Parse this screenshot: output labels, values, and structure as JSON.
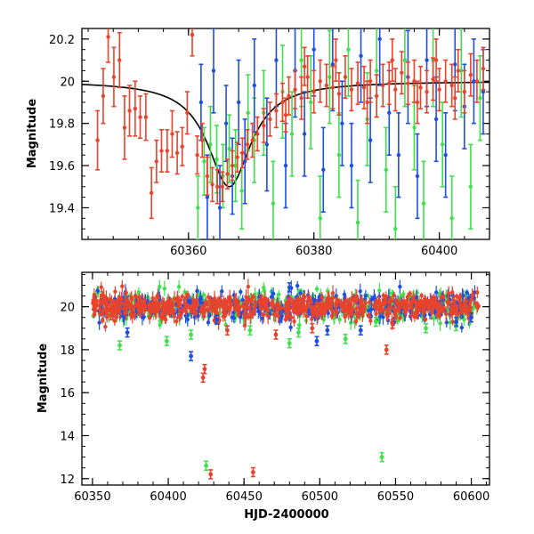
{
  "chart_data": [
    {
      "type": "scatter",
      "panel": "top",
      "ylabel": "Magnitude",
      "xlabel": "",
      "xlim": [
        60343,
        60408
      ],
      "ylim": [
        20.25,
        19.25
      ],
      "y_inverted": true,
      "xticks": [
        60360,
        60380,
        60400
      ],
      "xtick_labels": [
        "60360",
        "60380",
        "60400"
      ],
      "yticks": [
        19.4,
        19.6,
        19.8,
        20.0,
        20.2
      ],
      "ytick_labels": [
        "19.4",
        "19.6",
        "19.8",
        "20",
        "20.2"
      ],
      "model_curve": {
        "description": "peaked light-curve fit",
        "color": "#000000",
        "baseline_mag": 20.0,
        "peak_mag": 19.5,
        "peak_x": 60366.5,
        "width": 4.2
      },
      "series": [
        {
          "color": "#e8432c",
          "points": [
            [
              60345.5,
              19.72,
              0.14
            ],
            [
              60346.4,
              19.93,
              0.13
            ],
            [
              60347.2,
              20.21,
              0.12
            ],
            [
              60348.1,
              20.02,
              0.14
            ],
            [
              60349.0,
              20.1,
              0.13
            ],
            [
              60349.8,
              19.78,
              0.15
            ],
            [
              60350.6,
              19.86,
              0.12
            ],
            [
              60351.5,
              19.87,
              0.13
            ],
            [
              60352.3,
              19.83,
              0.1
            ],
            [
              60353.2,
              19.83,
              0.11
            ],
            [
              60354.1,
              19.47,
              0.12
            ],
            [
              60354.9,
              19.62,
              0.1
            ],
            [
              60355.7,
              19.67,
              0.1
            ],
            [
              60356.6,
              19.67,
              0.1
            ],
            [
              60357.4,
              19.75,
              0.11
            ],
            [
              60358.2,
              19.66,
              0.1
            ],
            [
              60359.0,
              19.69,
              0.09
            ],
            [
              60359.8,
              19.85,
              0.1
            ],
            [
              60360.6,
              20.22,
              0.1
            ],
            [
              60361.4,
              19.65,
              0.09
            ],
            [
              60362.2,
              19.72,
              0.08
            ],
            [
              60363.0,
              19.55,
              0.09
            ],
            [
              60363.8,
              19.51,
              0.08
            ],
            [
              60364.6,
              19.5,
              0.08
            ],
            [
              60365.4,
              19.5,
              0.07
            ],
            [
              60366.2,
              19.56,
              0.07
            ],
            [
              60367.0,
              19.6,
              0.07
            ],
            [
              60367.8,
              19.64,
              0.07
            ],
            [
              60368.6,
              19.66,
              0.07
            ],
            [
              60369.4,
              19.7,
              0.07
            ],
            [
              60370.2,
              19.72,
              0.08
            ],
            [
              60371.0,
              19.75,
              0.08
            ],
            [
              60372.0,
              19.79,
              0.08
            ],
            [
              60373.0,
              19.82,
              0.08
            ],
            [
              60374.0,
              19.86,
              0.08
            ],
            [
              60375.0,
              19.9,
              0.09
            ],
            [
              60376.0,
              19.93,
              0.09
            ],
            [
              60377.0,
              19.96,
              0.09
            ],
            [
              60378.0,
              19.92,
              0.1
            ],
            [
              60379.0,
              20.02,
              0.1
            ],
            [
              60380.0,
              19.95,
              0.1
            ],
            [
              60381.0,
              20.0,
              0.1
            ],
            [
              60382.0,
              19.98,
              0.1
            ],
            [
              60383.0,
              19.97,
              0.1
            ],
            [
              60384.0,
              19.94,
              0.1
            ],
            [
              60385.0,
              20.02,
              0.1
            ],
            [
              60386.0,
              19.96,
              0.1
            ],
            [
              60387.0,
              19.99,
              0.1
            ],
            [
              60388.0,
              19.97,
              0.1
            ],
            [
              60389.0,
              20.0,
              0.1
            ],
            [
              60390.0,
              19.93,
              0.1
            ],
            [
              60391.0,
              19.98,
              0.1
            ],
            [
              60392.0,
              19.99,
              0.1
            ],
            [
              60393.0,
              19.96,
              0.1
            ],
            [
              60394.0,
              20.04,
              0.1
            ],
            [
              60395.0,
              19.99,
              0.1
            ],
            [
              60396.0,
              20.0,
              0.1
            ],
            [
              60397.0,
              19.97,
              0.1
            ],
            [
              60398.0,
              19.95,
              0.1
            ],
            [
              60399.0,
              20.01,
              0.1
            ],
            [
              60400.0,
              19.96,
              0.1
            ],
            [
              60401.0,
              20.0,
              0.1
            ],
            [
              60402.0,
              19.98,
              0.1
            ],
            [
              60403.0,
              20.05,
              0.1
            ],
            [
              60404.0,
              19.95,
              0.1
            ],
            [
              60405.0,
              20.03,
              0.1
            ],
            [
              60406.0,
              20.0,
              0.1
            ],
            [
              60407.0,
              20.06,
              0.1
            ],
            [
              60375.5,
              19.84,
              0.08
            ],
            [
              60378.5,
              20.07,
              0.09
            ],
            [
              60383.5,
              20.1,
              0.1
            ],
            [
              60388.5,
              19.9,
              0.1
            ],
            [
              60392.5,
              20.1,
              0.1
            ],
            [
              60396.5,
              19.9,
              0.1
            ],
            [
              60399.5,
              20.1,
              0.1
            ],
            [
              60402.5,
              19.92,
              0.1
            ]
          ]
        },
        {
          "color": "#3fe04c",
          "points": [
            [
              60361.5,
              19.4,
              0.15
            ],
            [
              60362.5,
              19.62,
              0.16
            ],
            [
              60363.5,
              19.7,
              0.18
            ],
            [
              60364.5,
              19.63,
              0.16
            ],
            [
              60365.5,
              19.55,
              0.15
            ],
            [
              60366.5,
              19.68,
              0.16
            ],
            [
              60367.5,
              19.6,
              0.17
            ],
            [
              60368.5,
              19.48,
              0.18
            ],
            [
              60369.5,
              19.85,
              0.18
            ],
            [
              60370.5,
              19.72,
              0.2
            ],
            [
              60372.0,
              19.85,
              0.2
            ],
            [
              60373.5,
              19.42,
              0.2
            ],
            [
              60375.0,
              19.95,
              0.22
            ],
            [
              60376.5,
              19.75,
              0.2
            ],
            [
              60378.0,
              20.1,
              0.22
            ],
            [
              60379.5,
              19.9,
              0.22
            ],
            [
              60381.0,
              19.35,
              0.2
            ],
            [
              60382.5,
              20.02,
              0.22
            ],
            [
              60384.0,
              19.65,
              0.2
            ],
            [
              60385.5,
              20.15,
              0.22
            ],
            [
              60387.0,
              19.33,
              0.2
            ],
            [
              60388.5,
              19.82,
              0.22
            ],
            [
              60390.0,
              20.05,
              0.22
            ],
            [
              60391.5,
              19.58,
              0.2
            ],
            [
              60393.0,
              19.3,
              0.2
            ],
            [
              60394.5,
              20.1,
              0.22
            ],
            [
              60396.0,
              19.78,
              0.2
            ],
            [
              60397.5,
              19.42,
              0.2
            ],
            [
              60399.0,
              20.1,
              0.22
            ],
            [
              60400.5,
              19.7,
              0.2
            ],
            [
              60402.0,
              19.35,
              0.2
            ],
            [
              60403.5,
              20.05,
              0.22
            ],
            [
              60405.0,
              19.5,
              0.2
            ],
            [
              60406.5,
              19.92,
              0.2
            ]
          ]
        },
        {
          "color": "#1f4fe0",
          "points": [
            [
              60362.0,
              19.9,
              0.18
            ],
            [
              60363.0,
              19.45,
              0.2
            ],
            [
              60364.0,
              20.05,
              0.2
            ],
            [
              60365.0,
              19.4,
              0.2
            ],
            [
              60366.0,
              19.8,
              0.18
            ],
            [
              60367.0,
              19.55,
              0.18
            ],
            [
              60368.0,
              19.9,
              0.2
            ],
            [
              60369.0,
              19.62,
              0.2
            ],
            [
              60370.5,
              19.98,
              0.22
            ],
            [
              60372.5,
              19.7,
              0.22
            ],
            [
              60374.0,
              20.1,
              0.22
            ],
            [
              60375.5,
              19.6,
              0.2
            ],
            [
              60377.0,
              20.05,
              0.22
            ],
            [
              60378.5,
              19.75,
              0.2
            ],
            [
              60380.0,
              20.15,
              0.22
            ],
            [
              60381.5,
              19.58,
              0.2
            ],
            [
              60383.0,
              20.08,
              0.22
            ],
            [
              60384.5,
              19.8,
              0.2
            ],
            [
              60386.0,
              19.6,
              0.2
            ],
            [
              60387.5,
              20.12,
              0.22
            ],
            [
              60389.0,
              19.72,
              0.2
            ],
            [
              60390.5,
              20.2,
              0.22
            ],
            [
              60392.0,
              19.85,
              0.2
            ],
            [
              60393.5,
              19.65,
              0.2
            ],
            [
              60395.0,
              20.02,
              0.22
            ],
            [
              60396.5,
              19.55,
              0.2
            ],
            [
              60398.0,
              20.1,
              0.22
            ],
            [
              60399.5,
              19.82,
              0.2
            ],
            [
              60401.0,
              19.65,
              0.2
            ],
            [
              60402.5,
              20.08,
              0.22
            ],
            [
              60404.0,
              19.88,
              0.2
            ],
            [
              60405.5,
              20.0,
              0.2
            ],
            [
              60407.0,
              19.95,
              0.2
            ]
          ]
        }
      ]
    },
    {
      "type": "scatter",
      "panel": "bottom",
      "ylabel": "Magnitude",
      "xlabel": "HJD-2400000",
      "xlim": [
        60343,
        60612
      ],
      "ylim": [
        21.6,
        11.7
      ],
      "y_inverted": true,
      "xticks": [
        60350,
        60400,
        60450,
        60500,
        60550,
        60600
      ],
      "xtick_labels": [
        "60350",
        "60400",
        "60450",
        "60500",
        "60550",
        "60600"
      ],
      "yticks": [
        12,
        14,
        16,
        18,
        20
      ],
      "ytick_labels": [
        "12",
        "14",
        "16",
        "18",
        "20"
      ],
      "baseline_band": {
        "x_start": 60350,
        "x_end": 60605,
        "center_mag": 20.0,
        "scatter_mag": 0.35
      },
      "series": [
        {
          "color": "#e8432c",
          "outliers": [
            [
              60428,
              12.2
            ],
            [
              60456,
              12.3
            ],
            [
              60423,
              16.7
            ],
            [
              60424,
              17.1
            ],
            [
              60471,
              18.7
            ],
            [
              60544,
              18.0
            ],
            [
              60548,
              19.2
            ],
            [
              60439,
              18.9
            ],
            [
              60362,
              19.6
            ],
            [
              60495,
              19.0
            ]
          ]
        },
        {
          "color": "#3fe04c",
          "outliers": [
            [
              60425,
              12.6
            ],
            [
              60541,
              13.0
            ],
            [
              60368,
              18.2
            ],
            [
              60480,
              18.3
            ],
            [
              60486,
              18.8
            ],
            [
              60399,
              18.4
            ],
            [
              60454,
              18.9
            ],
            [
              60517,
              18.5
            ],
            [
              60570,
              19.0
            ],
            [
              60415,
              18.7
            ],
            [
              60537,
              19.3
            ],
            [
              60590,
              19.1
            ]
          ]
        },
        {
          "color": "#1f4fe0",
          "outliers": [
            [
              60415,
              17.7
            ],
            [
              60373,
              18.8
            ],
            [
              60498,
              18.4
            ],
            [
              60505,
              18.9
            ],
            [
              60527,
              18.9
            ],
            [
              60590,
              19.3
            ],
            [
              60600,
              19.5
            ],
            [
              60480,
              20.9
            ],
            [
              60432,
              19.4
            ]
          ]
        }
      ]
    }
  ]
}
